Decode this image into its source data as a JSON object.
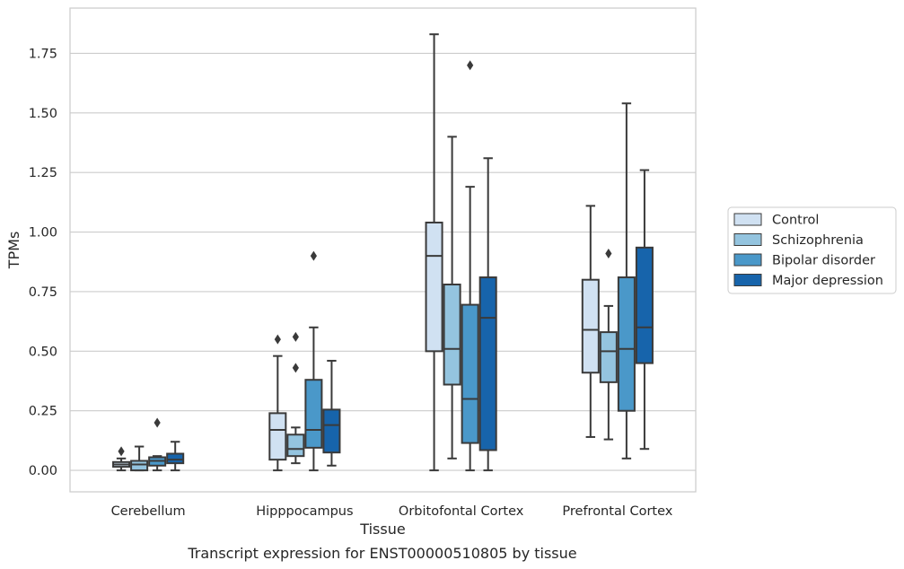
{
  "chart_data": {
    "type": "box",
    "caption": "Transcript expression for ENST00000510805 by tissue",
    "xlabel": "Tissue",
    "ylabel": "TPMs",
    "ylim": [
      -0.09,
      1.94
    ],
    "yticks": [
      0.0,
      0.25,
      0.5,
      0.75,
      1.0,
      1.25,
      1.5,
      1.75
    ],
    "ytick_labels": [
      "0.00",
      "0.25",
      "0.50",
      "0.75",
      "1.00",
      "1.25",
      "1.50",
      "1.75"
    ],
    "grid": "horizontal",
    "legend_position": "right",
    "categories": [
      "Cerebellum",
      "Hipppocampus",
      "Orbitofontal Cortex",
      "Prefrontal Cortex"
    ],
    "series": [
      {
        "name": "Control",
        "color": "#d0e1f2",
        "boxes": [
          {
            "whisker_low": 0.0,
            "q1": 0.015,
            "median": 0.025,
            "q3": 0.035,
            "whisker_high": 0.05,
            "outliers": [
              0.08
            ]
          },
          {
            "whisker_low": 0.0,
            "q1": 0.045,
            "median": 0.17,
            "q3": 0.24,
            "whisker_high": 0.48,
            "outliers": [
              0.55
            ]
          },
          {
            "whisker_low": 0.0,
            "q1": 0.5,
            "median": 0.9,
            "q3": 1.04,
            "whisker_high": 1.83,
            "outliers": []
          },
          {
            "whisker_low": 0.14,
            "q1": 0.41,
            "median": 0.59,
            "q3": 0.8,
            "whisker_high": 1.11,
            "outliers": []
          }
        ]
      },
      {
        "name": "Schizophrenia",
        "color": "#94c4df",
        "boxes": [
          {
            "whisker_low": 0.0,
            "q1": 0.0,
            "median": 0.025,
            "q3": 0.04,
            "whisker_high": 0.1,
            "outliers": []
          },
          {
            "whisker_low": 0.03,
            "q1": 0.06,
            "median": 0.09,
            "q3": 0.15,
            "whisker_high": 0.18,
            "outliers": [
              0.43,
              0.56
            ]
          },
          {
            "whisker_low": 0.05,
            "q1": 0.36,
            "median": 0.51,
            "q3": 0.78,
            "whisker_high": 1.4,
            "outliers": []
          },
          {
            "whisker_low": 0.13,
            "q1": 0.37,
            "median": 0.5,
            "q3": 0.58,
            "whisker_high": 0.69,
            "outliers": [
              0.91
            ]
          }
        ]
      },
      {
        "name": "Bipolar disorder",
        "color": "#4a98c9",
        "boxes": [
          {
            "whisker_low": 0.0,
            "q1": 0.02,
            "median": 0.04,
            "q3": 0.055,
            "whisker_high": 0.06,
            "outliers": [
              0.2
            ]
          },
          {
            "whisker_low": 0.0,
            "q1": 0.095,
            "median": 0.17,
            "q3": 0.38,
            "whisker_high": 0.6,
            "outliers": [
              0.9
            ]
          },
          {
            "whisker_low": 0.0,
            "q1": 0.115,
            "median": 0.3,
            "q3": 0.695,
            "whisker_high": 1.19,
            "outliers": [
              1.7
            ]
          },
          {
            "whisker_low": 0.05,
            "q1": 0.25,
            "median": 0.51,
            "q3": 0.81,
            "whisker_high": 1.54,
            "outliers": []
          }
        ]
      },
      {
        "name": "Major depression",
        "color": "#1764ab",
        "boxes": [
          {
            "whisker_low": 0.0,
            "q1": 0.03,
            "median": 0.045,
            "q3": 0.07,
            "whisker_high": 0.12,
            "outliers": []
          },
          {
            "whisker_low": 0.02,
            "q1": 0.075,
            "median": 0.19,
            "q3": 0.255,
            "whisker_high": 0.46,
            "outliers": []
          },
          {
            "whisker_low": 0.0,
            "q1": 0.085,
            "median": 0.64,
            "q3": 0.81,
            "whisker_high": 1.31,
            "outliers": []
          },
          {
            "whisker_low": 0.09,
            "q1": 0.45,
            "median": 0.6,
            "q3": 0.935,
            "whisker_high": 1.26,
            "outliers": []
          }
        ]
      }
    ]
  }
}
